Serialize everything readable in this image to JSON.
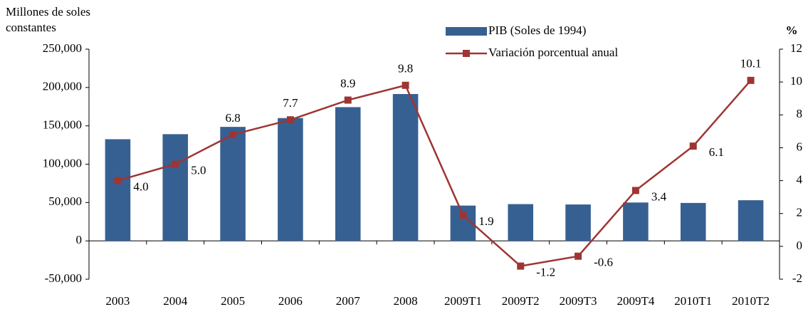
{
  "chart_data": {
    "type": "bar_line",
    "y_label": "Millones de soles constantes",
    "y2_label": "%",
    "categories": [
      "2003",
      "2004",
      "2005",
      "2006",
      "2007",
      "2008",
      "2009T1",
      "2009T2",
      "2009T3",
      "2009T4",
      "2010T1",
      "2010T2"
    ],
    "series": [
      {
        "name": "PIB (Soles de 1994)",
        "type": "bar",
        "color": "#376092",
        "values": [
          132545,
          139141,
          148640,
          160145,
          174407,
          191505,
          46029,
          47934,
          47468,
          50039,
          49466,
          53002
        ]
      },
      {
        "name": "Variación porcentual anual",
        "type": "line",
        "axis": "y2",
        "color": "#9e3533",
        "values": [
          4.0,
          5.0,
          6.8,
          7.7,
          8.9,
          9.8,
          1.9,
          -1.2,
          -0.6,
          3.4,
          6.1,
          10.1
        ],
        "value_labels": [
          "4.0",
          "5.0",
          "6.8",
          "7.7",
          "8.9",
          "9.8",
          "1.9",
          "-1.2",
          "-0.6",
          "3.4",
          "6.1",
          "10.1"
        ]
      }
    ],
    "ylim": [
      -50000,
      250000
    ],
    "yticks": [
      {
        "value": -50000,
        "label": "-50,000"
      },
      0,
      {
        "value": 50000,
        "label": "50,000"
      },
      {
        "value": 100000,
        "label": "100,000"
      },
      {
        "value": 150000,
        "label": "150,000"
      },
      {
        "value": 200000,
        "label": "200,000"
      },
      {
        "value": 250000,
        "label": "250,000"
      }
    ],
    "y2lim": [
      -2,
      12
    ],
    "y2ticks": [
      -2,
      0,
      2,
      4,
      6,
      8,
      10,
      12
    ],
    "legend": "top-center",
    "grid": false
  }
}
